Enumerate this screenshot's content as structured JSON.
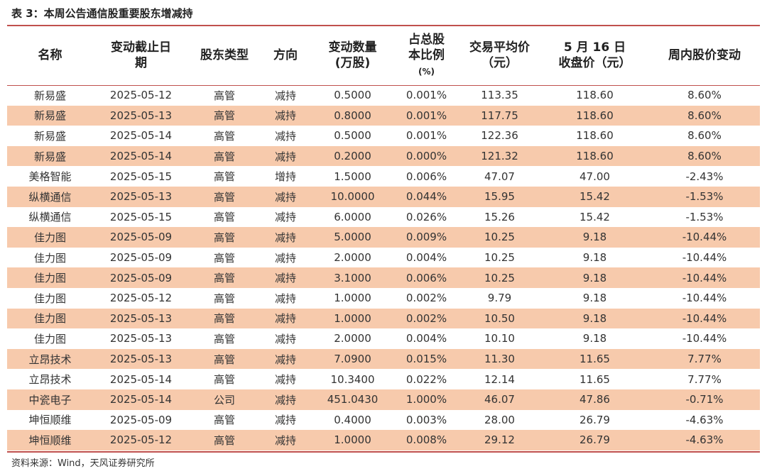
{
  "title": "表 3：本周公告通信股重要股东增减持",
  "headers": [
    {
      "line1": "名称",
      "line2": "",
      "line3": ""
    },
    {
      "line1": "变动截止日",
      "line2": "期",
      "line3": ""
    },
    {
      "line1": "股东类型",
      "line2": "",
      "line3": ""
    },
    {
      "line1": "方向",
      "line2": "",
      "line3": ""
    },
    {
      "line1": "变动数量",
      "line2": "(万股)",
      "line3": ""
    },
    {
      "line1": "占总股",
      "line2": "本比例",
      "line3": "(%)"
    },
    {
      "line1": "交易平均价",
      "line2": "（元）",
      "line3": ""
    },
    {
      "line1": "5 月 16 日",
      "line2": "收盘价（元）",
      "line3": ""
    },
    {
      "line1": "周内股价变动",
      "line2": "",
      "line3": ""
    }
  ],
  "rows": [
    [
      "新易盛",
      "2025-05-12",
      "高管",
      "减持",
      "0.5000",
      "0.001%",
      "113.35",
      "118.60",
      "8.60%"
    ],
    [
      "新易盛",
      "2025-05-13",
      "高管",
      "减持",
      "0.8000",
      "0.001%",
      "117.75",
      "118.60",
      "8.60%"
    ],
    [
      "新易盛",
      "2025-05-14",
      "高管",
      "减持",
      "0.5000",
      "0.001%",
      "122.36",
      "118.60",
      "8.60%"
    ],
    [
      "新易盛",
      "2025-05-14",
      "高管",
      "减持",
      "0.2000",
      "0.000%",
      "121.32",
      "118.60",
      "8.60%"
    ],
    [
      "美格智能",
      "2025-05-15",
      "高管",
      "增持",
      "1.5000",
      "0.006%",
      "47.07",
      "47.00",
      "-2.43%"
    ],
    [
      "纵横通信",
      "2025-05-13",
      "高管",
      "减持",
      "10.0000",
      "0.044%",
      "15.95",
      "15.42",
      "-1.53%"
    ],
    [
      "纵横通信",
      "2025-05-15",
      "高管",
      "减持",
      "6.0000",
      "0.026%",
      "15.26",
      "15.42",
      "-1.53%"
    ],
    [
      "佳力图",
      "2025-05-09",
      "高管",
      "减持",
      "5.0000",
      "0.009%",
      "10.25",
      "9.18",
      "-10.44%"
    ],
    [
      "佳力图",
      "2025-05-09",
      "高管",
      "减持",
      "2.0000",
      "0.004%",
      "10.25",
      "9.18",
      "-10.44%"
    ],
    [
      "佳力图",
      "2025-05-09",
      "高管",
      "减持",
      "3.1000",
      "0.006%",
      "10.25",
      "9.18",
      "-10.44%"
    ],
    [
      "佳力图",
      "2025-05-12",
      "高管",
      "减持",
      "1.0000",
      "0.002%",
      "9.79",
      "9.18",
      "-10.44%"
    ],
    [
      "佳力图",
      "2025-05-13",
      "高管",
      "减持",
      "1.0000",
      "0.002%",
      "10.50",
      "9.18",
      "-10.44%"
    ],
    [
      "佳力图",
      "2025-05-13",
      "高管",
      "减持",
      "2.0000",
      "0.004%",
      "10.10",
      "9.18",
      "-10.44%"
    ],
    [
      "立昂技术",
      "2025-05-13",
      "高管",
      "减持",
      "7.0900",
      "0.015%",
      "11.30",
      "11.65",
      "7.77%"
    ],
    [
      "立昂技术",
      "2025-05-14",
      "高管",
      "减持",
      "10.3400",
      "0.022%",
      "12.14",
      "11.65",
      "7.77%"
    ],
    [
      "中瓷电子",
      "2025-05-14",
      "公司",
      "减持",
      "451.0430",
      "1.000%",
      "46.07",
      "47.86",
      "-0.71%"
    ],
    [
      "坤恒顺维",
      "2025-05-09",
      "高管",
      "减持",
      "0.4000",
      "0.003%",
      "28.00",
      "26.79",
      "-4.63%"
    ],
    [
      "坤恒顺维",
      "2025-05-12",
      "高管",
      "减持",
      "1.0000",
      "0.008%",
      "29.12",
      "26.79",
      "-4.63%"
    ]
  ],
  "source": "资料来源：Wind，天风证券研究所",
  "colors": {
    "rule": "#c0504d",
    "stripe": "#f7caac"
  }
}
